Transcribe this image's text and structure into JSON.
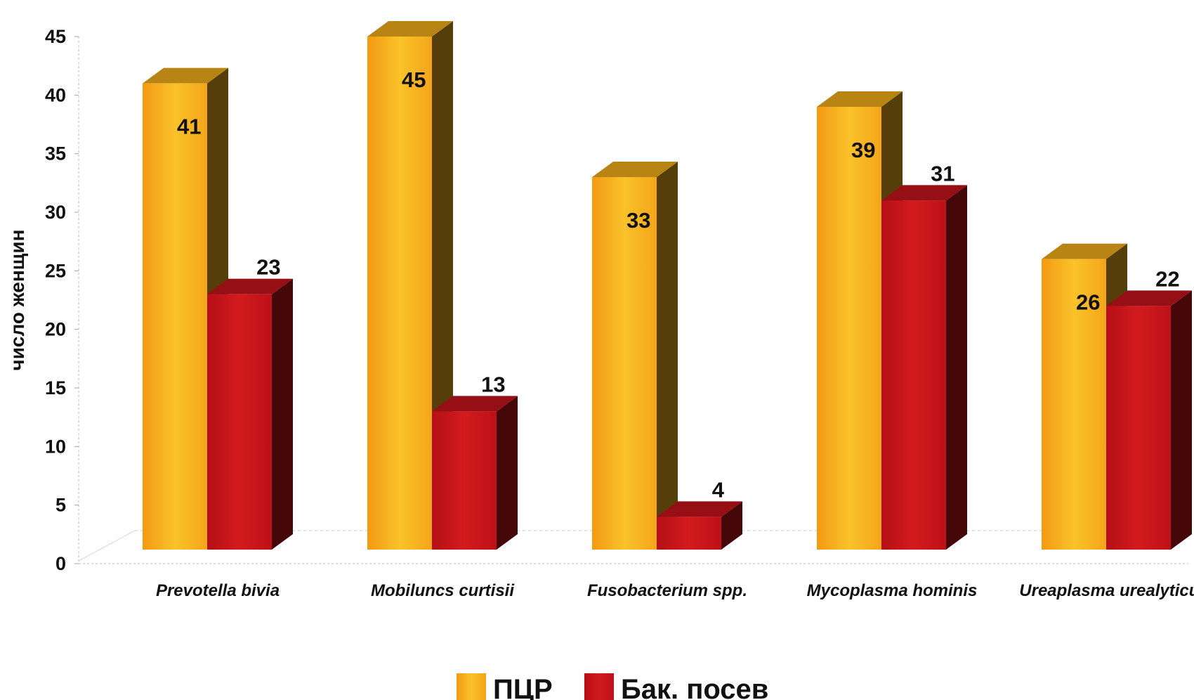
{
  "chart_data": {
    "type": "bar",
    "categories": [
      "Prevotella bivia",
      "Mobiluncs curtisii",
      "Fusobacterium spp.",
      "Mycoplasma hominis",
      "Ureaplasma urealyticum"
    ],
    "series": [
      {
        "name": "ПЦР",
        "values": [
          41,
          45,
          33,
          39,
          26
        ],
        "color": "#F5B11C"
      },
      {
        "name": "Бак. посев",
        "values": [
          23,
          13,
          4,
          31,
          22
        ],
        "color": "#C8141B"
      }
    ],
    "ylabel": "число женщин",
    "ylim": [
      0,
      45
    ],
    "yticks": [
      0,
      5,
      10,
      15,
      20,
      25,
      30,
      35,
      40,
      45
    ],
    "legend_position": "bottom",
    "grid": false,
    "style": "3d-bar"
  }
}
